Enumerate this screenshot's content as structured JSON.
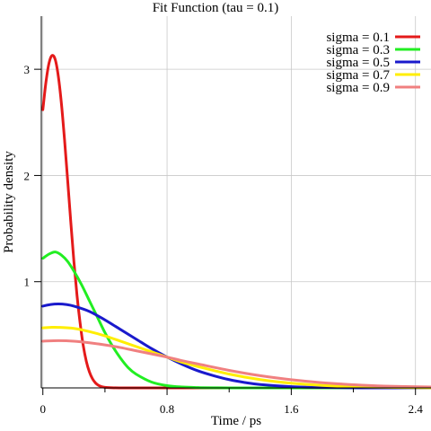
{
  "chart_data": {
    "type": "line",
    "title": "Fit Function (tau = 0.1)",
    "xlabel": "Time / ps",
    "ylabel": "Probability density",
    "xlim": [
      -0.01,
      2.5
    ],
    "ylim": [
      0,
      3.5
    ],
    "x_ticks": [
      {
        "value": 0,
        "label": "0"
      },
      {
        "value": 0.8,
        "label": "0.8"
      },
      {
        "value": 1.6,
        "label": "1.6"
      },
      {
        "value": 2.4,
        "label": "2.4"
      }
    ],
    "x_minor_ticks": [
      0.4,
      1.2,
      2.0
    ],
    "y_ticks": [
      {
        "value": 1,
        "label": "1"
      },
      {
        "value": 2,
        "label": "2"
      },
      {
        "value": 3,
        "label": "3"
      }
    ],
    "grid": true,
    "legend_position": "top-right",
    "series": [
      {
        "name": "sigma = 0.1",
        "color": "#e41a1a",
        "x": [
          0,
          0.02,
          0.04,
          0.06,
          0.08,
          0.1,
          0.12,
          0.14,
          0.16,
          0.18,
          0.2,
          0.22,
          0.24,
          0.26,
          0.28,
          0.3,
          0.32,
          0.34,
          0.36,
          0.38,
          0.4,
          0.45,
          0.5,
          0.55,
          0.6,
          0.7,
          0.8,
          1.0,
          1.4,
          2.0,
          2.5
        ],
        "values": [
          2.62,
          2.88,
          3.06,
          3.13,
          3.09,
          2.93,
          2.67,
          2.33,
          1.95,
          1.56,
          1.19,
          0.87,
          0.61,
          0.4,
          0.25,
          0.15,
          0.085,
          0.045,
          0.023,
          0.011,
          0.005,
          0.001,
          0.0,
          0.0,
          0.0,
          0.0,
          0.0,
          0.0,
          0.0,
          0.0,
          0.0
        ]
      },
      {
        "name": "sigma = 0.3",
        "color": "#22ee22",
        "x": [
          0,
          0.04,
          0.08,
          0.12,
          0.16,
          0.2,
          0.25,
          0.3,
          0.35,
          0.4,
          0.45,
          0.5,
          0.55,
          0.6,
          0.7,
          0.8,
          0.9,
          1.0,
          1.1,
          1.2,
          1.4,
          1.6,
          2.0,
          2.5
        ],
        "values": [
          1.22,
          1.26,
          1.28,
          1.25,
          1.19,
          1.1,
          0.97,
          0.82,
          0.67,
          0.52,
          0.39,
          0.28,
          0.19,
          0.13,
          0.055,
          0.021,
          0.008,
          0.003,
          0.001,
          0.0,
          0.0,
          0.0,
          0.0,
          0.0
        ]
      },
      {
        "name": "sigma = 0.5",
        "color": "#1a1acc",
        "x": [
          0,
          0.05,
          0.1,
          0.15,
          0.2,
          0.3,
          0.4,
          0.5,
          0.6,
          0.7,
          0.8,
          0.9,
          1.0,
          1.1,
          1.2,
          1.3,
          1.4,
          1.6,
          1.8,
          2.0,
          2.2,
          2.5
        ],
        "values": [
          0.77,
          0.785,
          0.79,
          0.785,
          0.77,
          0.72,
          0.64,
          0.55,
          0.46,
          0.37,
          0.29,
          0.22,
          0.16,
          0.115,
          0.078,
          0.051,
          0.032,
          0.012,
          0.004,
          0.001,
          0.0,
          0.0
        ]
      },
      {
        "name": "sigma = 0.7",
        "color": "#ffee00",
        "x": [
          0,
          0.05,
          0.1,
          0.2,
          0.3,
          0.4,
          0.5,
          0.6,
          0.7,
          0.8,
          0.9,
          1.0,
          1.2,
          1.4,
          1.6,
          1.8,
          2.0,
          2.2,
          2.5
        ],
        "values": [
          0.565,
          0.57,
          0.57,
          0.56,
          0.53,
          0.49,
          0.44,
          0.39,
          0.34,
          0.29,
          0.24,
          0.2,
          0.13,
          0.078,
          0.044,
          0.023,
          0.011,
          0.005,
          0.001
        ]
      },
      {
        "name": "sigma = 0.9",
        "color": "#f08080",
        "x": [
          0,
          0.1,
          0.2,
          0.3,
          0.4,
          0.5,
          0.6,
          0.7,
          0.8,
          0.9,
          1.0,
          1.2,
          1.4,
          1.6,
          1.8,
          2.0,
          2.2,
          2.5
        ],
        "values": [
          0.44,
          0.445,
          0.44,
          0.425,
          0.405,
          0.38,
          0.35,
          0.32,
          0.29,
          0.255,
          0.225,
          0.165,
          0.115,
          0.077,
          0.049,
          0.03,
          0.017,
          0.008
        ]
      }
    ]
  }
}
